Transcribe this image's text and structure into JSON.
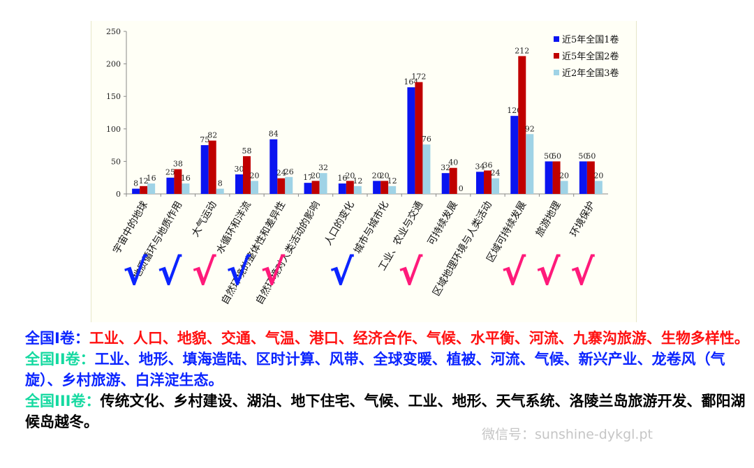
{
  "chart_data": {
    "type": "bar",
    "categories": [
      "宇宙中的地球",
      "地质循环与地质作用",
      "大气运动",
      "水循环和洋流",
      "自然环境的整体性和差异性",
      "自然环境对人类活动的影响",
      "人口的变化",
      "城市与城市化",
      "工业、农业与交通",
      "可持续发展",
      "区域地理环境与人类活动",
      "区域可持续发展",
      "旅游地理",
      "环境保护"
    ],
    "series": [
      {
        "name": "近5年全国1卷",
        "color": "#0a14f0",
        "values": [
          8,
          25,
          75,
          30,
          84,
          17,
          16,
          20,
          164,
          32,
          34,
          120,
          50,
          50
        ]
      },
      {
        "name": "近5年全国2卷",
        "color": "#c00000",
        "values": [
          12,
          38,
          82,
          58,
          24,
          20,
          20,
          20,
          172,
          40,
          36,
          212,
          50,
          50
        ]
      },
      {
        "name": "近2年全国3卷",
        "color": "#9fd3e6",
        "values": [
          16,
          16,
          8,
          20,
          26,
          32,
          12,
          12,
          76,
          0,
          24,
          92,
          20,
          20
        ]
      }
    ],
    "ylim": [
      0,
      250
    ],
    "yticks": [
      0,
      50,
      100,
      150,
      200,
      250
    ],
    "legend_position": "top-right",
    "grid": false,
    "checkmarks": [
      {
        "category_index": 0,
        "color": "#0b24ff"
      },
      {
        "category_index": 1,
        "color": "#0b24ff"
      },
      {
        "category_index": 2,
        "color": "#ff1a7a"
      },
      {
        "category_index": 3,
        "color": "#0b24ff"
      },
      {
        "category_index": 4,
        "color": "#ff1a7a"
      },
      {
        "category_index": 6,
        "color": "#0b24ff"
      },
      {
        "category_index": 8,
        "color": "#ff1a7a"
      },
      {
        "category_index": 11,
        "color": "#ff1a7a"
      },
      {
        "category_index": 12,
        "color": "#ff1a7a"
      },
      {
        "category_index": 13,
        "color": "#ff1a7a"
      }
    ]
  },
  "checkmark_glyph": "√",
  "notes": [
    {
      "label": "全国I卷：",
      "label_color": "blue",
      "text": "工业、人口、地貌、交通、气温、港口、经济合作、气候、水平衡、河流、九寨沟旅游、生物多样性。",
      "text_color": "red"
    },
    {
      "label": "全国II卷：",
      "label_color": "green",
      "text": "工业、地形、填海造陆、区时计算、风带、全球变暖、植被、河流、气候、新兴产业、龙卷风（气旋）、乡村旅游、白洋淀生态。",
      "text_color": "blue"
    },
    {
      "label": "全国III卷：",
      "label_color": "green",
      "text": "传统文化、乡村建设、湖泊、地下住宅、气候、工业、地形、天气系统、洛陵兰岛旅游开发、鄱阳湖候岛越冬。",
      "text_color": "black"
    }
  ],
  "watermark": "微信号：sunshine-dykgl.pt"
}
